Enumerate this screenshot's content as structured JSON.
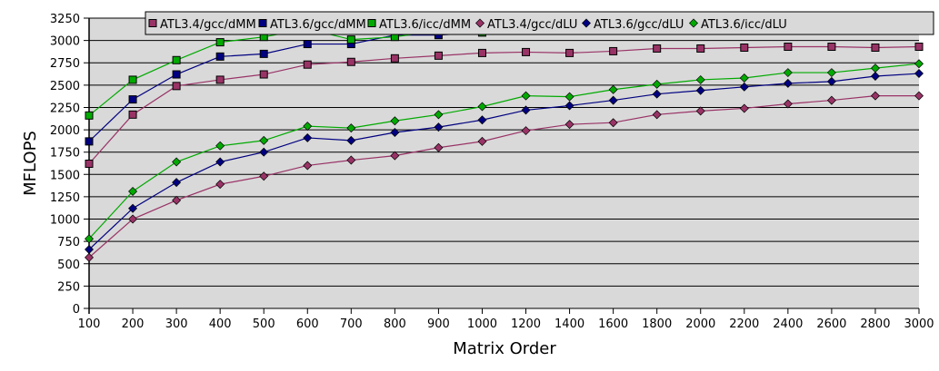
{
  "chart_data": {
    "type": "line",
    "title": "",
    "xlabel": "Matrix Order",
    "ylabel": "MFLOPS",
    "ylim": [
      0,
      3250
    ],
    "y_ticks": [
      0,
      250,
      500,
      750,
      1000,
      1250,
      1500,
      1750,
      2000,
      2250,
      2500,
      2750,
      3000,
      3250
    ],
    "grid": true,
    "legend_placement": "top",
    "categories": [
      "100",
      "200",
      "300",
      "400",
      "500",
      "600",
      "700",
      "800",
      "900",
      "1000",
      "1200",
      "1400",
      "1600",
      "1800",
      "2000",
      "2200",
      "2400",
      "2600",
      "2800",
      "3000"
    ],
    "series": [
      {
        "name": "ATL3.4/gcc/dMM",
        "color": "#993366",
        "marker": "square",
        "values": [
          1620,
          2170,
          2490,
          2560,
          2620,
          2730,
          2760,
          2800,
          2830,
          2860,
          2870,
          2860,
          2880,
          2910,
          2910,
          2920,
          2930,
          2930,
          2920,
          2930
        ]
      },
      {
        "name": "ATL3.6/gcc/dMM",
        "color": "#000080",
        "marker": "square",
        "values": [
          1870,
          2340,
          2620,
          2820,
          2850,
          2960,
          2960,
          3060,
          3060,
          3090,
          3150,
          3170,
          3160,
          3200,
          3190,
          3200,
          3200,
          3150,
          3210,
          3220
        ]
      },
      {
        "name": "ATL3.6/icc/dMM",
        "color": "#00aa00",
        "marker": "square",
        "values": [
          2160,
          2560,
          2780,
          2980,
          3040,
          3130,
          3010,
          3040,
          3110,
          3090,
          3200,
          3130,
          3160,
          3220,
          3150,
          3180,
          3220,
          3180,
          3200,
          3220
        ]
      },
      {
        "name": "ATL3.4/gcc/dLU",
        "color": "#993366",
        "marker": "diamond",
        "values": [
          570,
          1000,
          1210,
          1390,
          1480,
          1600,
          1660,
          1710,
          1800,
          1870,
          1990,
          2060,
          2080,
          2170,
          2210,
          2240,
          2290,
          2330,
          2380,
          2380
        ]
      },
      {
        "name": "ATL3.6/gcc/dLU",
        "color": "#000080",
        "marker": "diamond",
        "values": [
          660,
          1120,
          1410,
          1640,
          1750,
          1910,
          1880,
          1970,
          2030,
          2110,
          2220,
          2270,
          2330,
          2400,
          2440,
          2480,
          2520,
          2540,
          2600,
          2630
        ]
      },
      {
        "name": "ATL3.6/icc/dLU",
        "color": "#00aa00",
        "marker": "diamond",
        "values": [
          780,
          1310,
          1640,
          1820,
          1880,
          2040,
          2020,
          2100,
          2170,
          2260,
          2380,
          2370,
          2450,
          2510,
          2560,
          2580,
          2640,
          2640,
          2690,
          2740
        ]
      }
    ]
  }
}
